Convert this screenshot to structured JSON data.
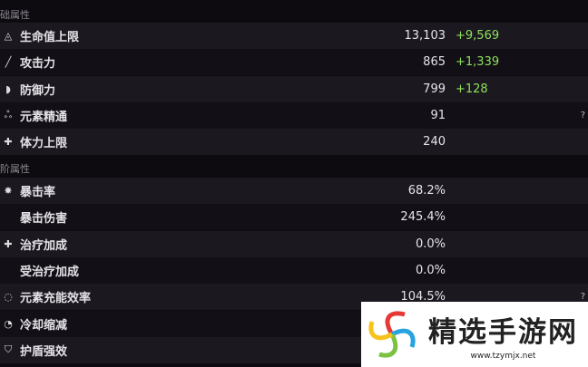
{
  "sections": [
    {
      "title": "础属性"
    },
    {
      "title": "阶属性"
    }
  ],
  "base_stats": [
    {
      "icon": "hp-drop-icon",
      "glyph": "◬",
      "label": "生命值上限",
      "value": "13,103",
      "bonus": "+9,569"
    },
    {
      "icon": "sword-icon",
      "glyph": "╱",
      "label": "攻击力",
      "value": "865",
      "bonus": "+1,339"
    },
    {
      "icon": "shield-icon",
      "glyph": "◗",
      "label": "防御力",
      "value": "799",
      "bonus": "+128"
    },
    {
      "icon": "elemental-mastery-icon",
      "glyph": "ஃ",
      "label": "元素精通",
      "value": "91",
      "bonus": "",
      "help": "?"
    },
    {
      "icon": "stamina-icon",
      "glyph": "✚",
      "label": "体力上限",
      "value": "240",
      "bonus": ""
    }
  ],
  "advanced_stats": [
    {
      "icon": "crit-rate-icon",
      "glyph": "✸",
      "label": "暴击率",
      "value": "68.2%"
    },
    {
      "icon": "",
      "glyph": "",
      "label": "暴击伤害",
      "value": "245.4%"
    },
    {
      "icon": "healing-bonus-icon",
      "glyph": "✚",
      "label": "治疗加成",
      "value": "0.0%"
    },
    {
      "icon": "",
      "glyph": "",
      "label": "受治疗加成",
      "value": "0.0%"
    },
    {
      "icon": "energy-recharge-icon",
      "glyph": "◌",
      "label": "元素充能效率",
      "value": "104.5%",
      "help": "?"
    },
    {
      "icon": "cd-reduction-icon",
      "glyph": "◔",
      "label": "冷却缩减",
      "value": ""
    },
    {
      "icon": "shield-strength-icon",
      "glyph": "⛉",
      "label": "护盾强效",
      "value": ""
    }
  ],
  "watermark": {
    "title": "精选手游网",
    "url": "www.tzymjx.net"
  },
  "colors": {
    "bonus": "#8fe05a"
  }
}
